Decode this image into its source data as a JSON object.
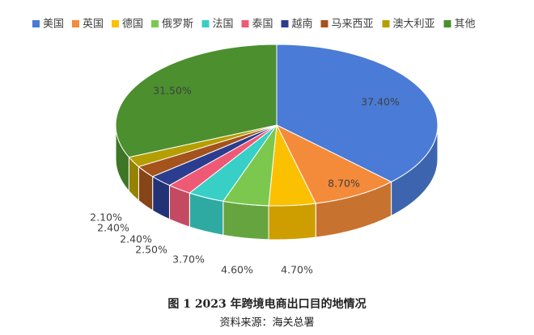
{
  "chart_data": {
    "type": "pie3d",
    "categories": [
      "美国",
      "英国",
      "德国",
      "俄罗斯",
      "法国",
      "泰国",
      "越南",
      "马来西亚",
      "澳大利亚",
      "其他"
    ],
    "values": [
      37.4,
      8.7,
      4.7,
      4.6,
      3.7,
      2.5,
      2.4,
      2.4,
      2.1,
      31.5
    ],
    "value_labels": [
      "37.40%",
      "8.70%",
      "4.70%",
      "4.60%",
      "3.70%",
      "2.50%",
      "2.40%",
      "2.40%",
      "2.10%",
      "31.50%"
    ],
    "colors": [
      "#4a7bd6",
      "#f48b3a",
      "#fbc100",
      "#7cc84e",
      "#38cfc6",
      "#ee5a76",
      "#2b3d8f",
      "#a4531c",
      "#b59f00",
      "#4c8f2f"
    ],
    "caption": "图 1  2023 年跨境电商出口目的地情况",
    "source": "资料来源：海关总署"
  }
}
